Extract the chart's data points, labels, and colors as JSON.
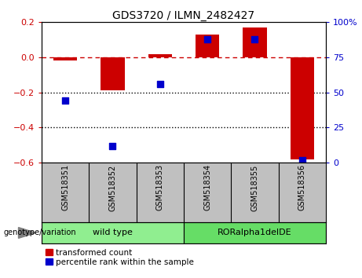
{
  "title": "GDS3720 / ILMN_2482427",
  "samples": [
    "GSM518351",
    "GSM518352",
    "GSM518353",
    "GSM518354",
    "GSM518355",
    "GSM518356"
  ],
  "red_values": [
    -0.02,
    -0.19,
    0.02,
    0.13,
    0.17,
    -0.58
  ],
  "blue_values": [
    44,
    12,
    56,
    88,
    88,
    2
  ],
  "ylim_left": [
    -0.6,
    0.2
  ],
  "ylim_right": [
    0,
    100
  ],
  "yticks_left": [
    -0.6,
    -0.4,
    -0.2,
    0.0,
    0.2
  ],
  "yticks_right": [
    0,
    25,
    50,
    75,
    100
  ],
  "groups": [
    {
      "label": "wild type",
      "start": 0,
      "end": 3,
      "color": "#90EE90"
    },
    {
      "label": "RORalpha1delDE",
      "start": 3,
      "end": 6,
      "color": "#66DD66"
    }
  ],
  "genotype_label": "genotype/variation",
  "legend_red": "transformed count",
  "legend_blue": "percentile rank within the sample",
  "bar_color": "#CC0000",
  "dot_color": "#0000CC",
  "dashed_line_color": "#CC0000",
  "dotted_line_color": "#000000",
  "bar_width": 0.5,
  "dot_size": 30,
  "background_color": "#ffffff",
  "plot_bg": "#ffffff",
  "group_bg": "#C0C0C0"
}
